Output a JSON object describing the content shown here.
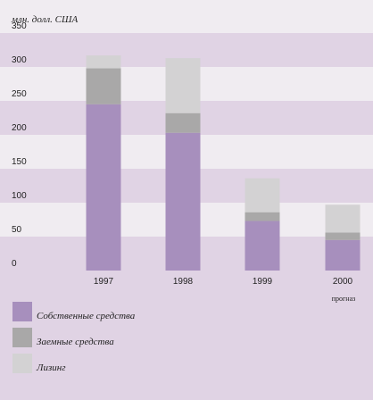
{
  "chart_data": {
    "type": "bar",
    "stacked": true,
    "ylabel": "млн. долл. США",
    "ylim": [
      0,
      400
    ],
    "yticks": [
      0,
      50,
      100,
      150,
      200,
      250,
      300,
      350,
      400
    ],
    "categories": [
      "1997",
      "1998",
      "1999",
      "2000"
    ],
    "category_notes": [
      "",
      "",
      "",
      "прогназ"
    ],
    "series": [
      {
        "name": "Собственные средства",
        "color": "#a78fbd",
        "values": [
          245,
          203,
          73,
          45
        ]
      },
      {
        "name": "Заемные средства",
        "color": "#a9a8a8",
        "values": [
          53,
          29,
          13,
          11
        ]
      },
      {
        "name": "Лизинг",
        "color": "#d3d2d3",
        "values": [
          19,
          81,
          50,
          41
        ]
      }
    ],
    "band_colors": [
      "#e0d3e4",
      "#f0ecf1"
    ],
    "grid": false
  }
}
